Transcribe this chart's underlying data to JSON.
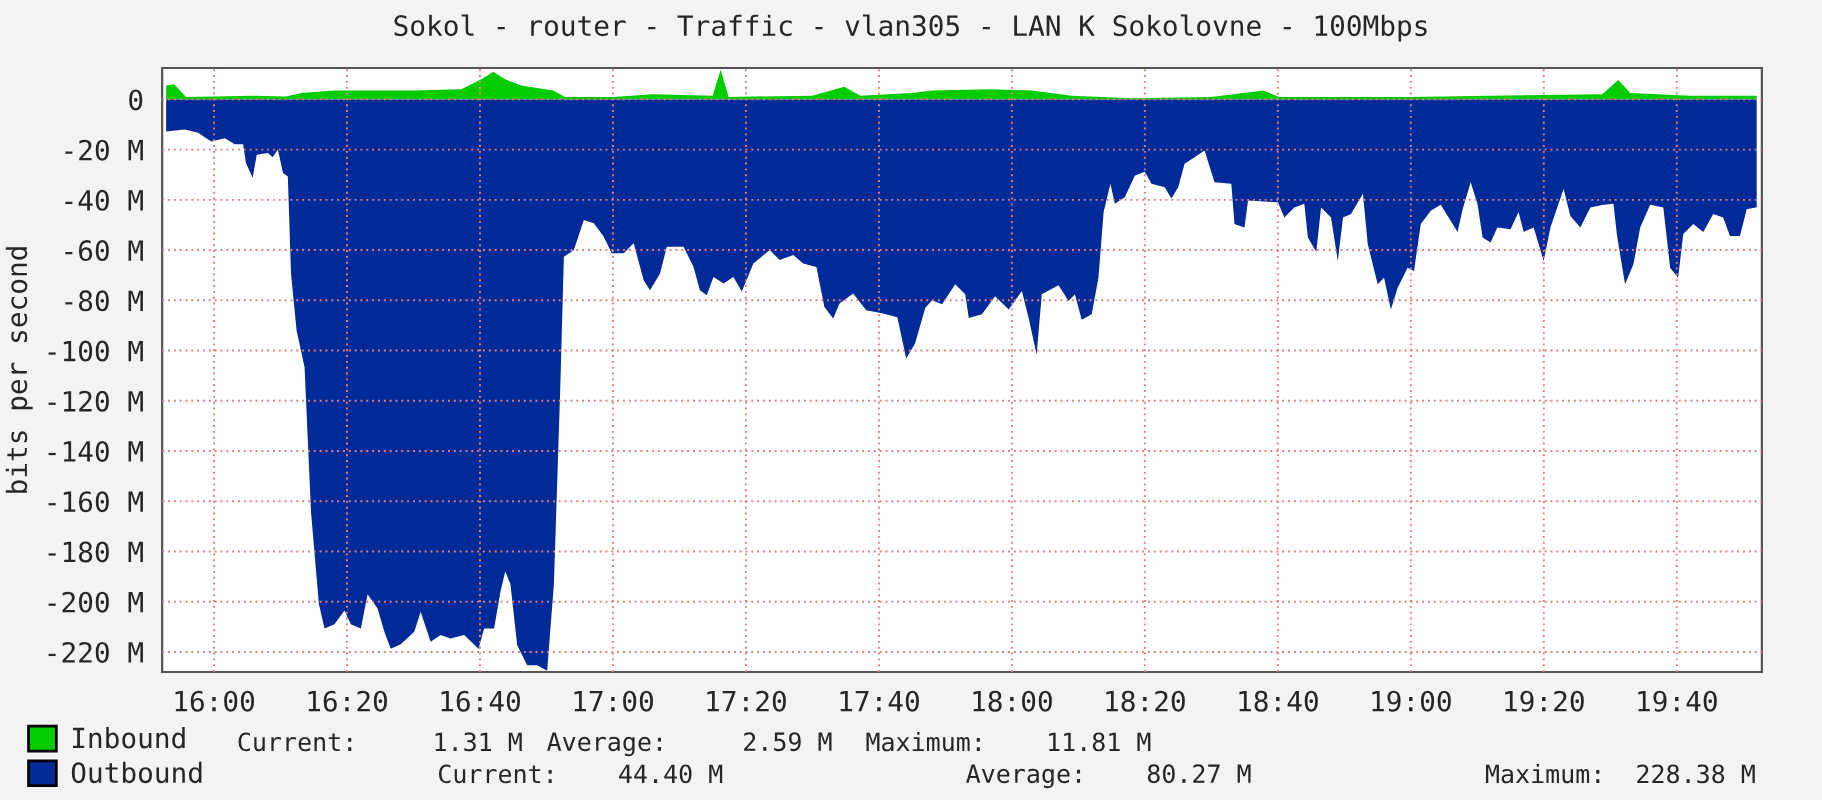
{
  "chart_data": {
    "type": "area",
    "title": "Sokol - router - Traffic - vlan305 - LAN K Sokolovne - 100Mbps",
    "ylabel": "bits per second",
    "xlim": [
      15.87,
      19.88
    ],
    "xticks": [
      {
        "value": 16,
        "label": "16:00"
      },
      {
        "value": 16.3333,
        "label": "16:20"
      },
      {
        "value": 16.6667,
        "label": "16:40"
      },
      {
        "value": 17,
        "label": "17:00"
      },
      {
        "value": 17.3333,
        "label": "17:20"
      },
      {
        "value": 17.6667,
        "label": "17:40"
      },
      {
        "value": 18,
        "label": "18:00"
      },
      {
        "value": 18.3333,
        "label": "18:20"
      },
      {
        "value": 18.6667,
        "label": "18:40"
      },
      {
        "value": 19,
        "label": "19:00"
      },
      {
        "value": 19.3333,
        "label": "19:20"
      },
      {
        "value": 19.6667,
        "label": "19:40"
      }
    ],
    "ylim": [
      -228,
      12.5
    ],
    "yticks": [
      0,
      {
        "value": -20,
        "label": "-20 M"
      },
      {
        "value": -40,
        "label": "-40 M"
      },
      {
        "value": -60,
        "label": "-60 M"
      },
      {
        "value": -80,
        "label": "-80 M"
      },
      {
        "value": -100,
        "label": "-100 M"
      },
      {
        "value": -120,
        "label": "-120 M"
      },
      {
        "value": -140,
        "label": "-140 M"
      },
      {
        "value": -160,
        "label": "-160 M"
      },
      {
        "value": -180,
        "label": "-180 M"
      },
      {
        "value": -200,
        "label": "-200 M"
      },
      {
        "value": -220,
        "label": "-220 M"
      }
    ],
    "grid": true,
    "legend": "bottom",
    "series": [
      {
        "name": "Inbound",
        "color": "#00cc00",
        "x": [
          15.88,
          15.9,
          15.93,
          16.1,
          16.18,
          16.22,
          16.3,
          16.5,
          16.62,
          16.67,
          16.7,
          16.73,
          16.77,
          16.85,
          16.88,
          17.0,
          17.1,
          17.25,
          17.27,
          17.29,
          17.5,
          17.58,
          17.62,
          17.75,
          17.8,
          17.95,
          18.05,
          18.15,
          18.3,
          18.5,
          18.63,
          18.67,
          19.0,
          19.2,
          19.48,
          19.52,
          19.55,
          19.7,
          19.867
        ],
        "values": [
          5.5,
          6,
          1,
          1.5,
          1.2,
          2.5,
          3.5,
          3.5,
          4,
          8,
          11,
          8,
          5.5,
          3.5,
          1,
          1,
          2,
          1.5,
          11.8,
          1,
          1.5,
          5,
          1.5,
          2.5,
          3.5,
          4,
          3.5,
          1.5,
          0.5,
          1,
          3.5,
          1,
          1,
          1.5,
          2,
          7.7,
          2.5,
          1.5,
          1.5
        ]
      },
      {
        "name": "Outbound",
        "color": "#002a97",
        "x": [
          15.88,
          15.927,
          15.96,
          15.993,
          16.027,
          16.052,
          16.073,
          16.08,
          16.097,
          16.107,
          16.135,
          16.147,
          16.16,
          16.173,
          16.185,
          16.193,
          16.207,
          16.227,
          16.243,
          16.263,
          16.277,
          16.302,
          16.327,
          16.343,
          16.368,
          16.385,
          16.41,
          16.427,
          16.443,
          16.468,
          16.502,
          16.518,
          16.543,
          16.568,
          16.593,
          16.627,
          16.663,
          16.677,
          16.702,
          16.718,
          16.73,
          16.743,
          16.76,
          16.785,
          16.81,
          16.835,
          16.852,
          16.868,
          16.877,
          16.902,
          16.927,
          16.952,
          16.977,
          16.997,
          17.027,
          17.052,
          17.077,
          17.093,
          17.118,
          17.135,
          17.177,
          17.202,
          17.218,
          17.235,
          17.252,
          17.277,
          17.302,
          17.323,
          17.352,
          17.393,
          17.418,
          17.452,
          17.477,
          17.51,
          17.53,
          17.552,
          17.568,
          17.602,
          17.635,
          17.677,
          17.713,
          17.735,
          17.757,
          17.783,
          17.8,
          17.825,
          17.858,
          17.883,
          17.892,
          17.925,
          17.958,
          17.992,
          18.025,
          18.042,
          18.062,
          18.075,
          18.117,
          18.142,
          18.158,
          18.175,
          18.2,
          18.217,
          18.23,
          18.247,
          18.258,
          18.283,
          18.308,
          18.333,
          18.35,
          18.383,
          18.4,
          18.417,
          18.433,
          18.458,
          18.483,
          18.508,
          18.55,
          18.558,
          18.583,
          18.592,
          18.667,
          18.683,
          18.708,
          18.733,
          18.742,
          18.763,
          18.775,
          18.8,
          18.817,
          18.83,
          18.85,
          18.88,
          18.892,
          18.917,
          18.933,
          18.95,
          18.967,
          18.992,
          19.008,
          19.025,
          19.05,
          19.075,
          19.1,
          19.117,
          19.13,
          19.15,
          19.167,
          19.18,
          19.2,
          19.217,
          19.25,
          19.27,
          19.283,
          19.308,
          19.333,
          19.35,
          19.383,
          19.4,
          19.425,
          19.45,
          19.483,
          19.508,
          19.517,
          19.537,
          19.558,
          19.575,
          19.6,
          19.633,
          19.65,
          19.67,
          19.683,
          19.708,
          19.733,
          19.758,
          19.783,
          19.8,
          19.825,
          19.842,
          19.867
        ],
        "values": [
          -12.8,
          -12,
          -13.3,
          -16.8,
          -15.5,
          -17.9,
          -17.9,
          -25.3,
          -31.2,
          -22,
          -21.3,
          -23,
          -20,
          -29.3,
          -30.7,
          -69.3,
          -92,
          -106.7,
          -164,
          -201,
          -210.7,
          -209,
          -203.5,
          -209,
          -210.7,
          -197,
          -202.7,
          -212,
          -218.7,
          -217,
          -212,
          -204,
          -216,
          -213.3,
          -214.7,
          -213.3,
          -218.7,
          -210.7,
          -210.7,
          -196,
          -188,
          -193,
          -217.3,
          -225.3,
          -225.3,
          -227.5,
          -193,
          -114.7,
          -62.7,
          -60,
          -48,
          -49.3,
          -54.7,
          -61.3,
          -61.3,
          -57.3,
          -72,
          -76,
          -69.3,
          -58.7,
          -58.7,
          -66.7,
          -76,
          -78,
          -70.7,
          -73.3,
          -70.7,
          -76.5,
          -65.3,
          -60,
          -64,
          -62,
          -65.3,
          -66.7,
          -82.7,
          -87.2,
          -81.3,
          -77.3,
          -84,
          -85.3,
          -86.7,
          -103.2,
          -97.3,
          -83,
          -80,
          -81.6,
          -73.6,
          -77.6,
          -87,
          -85.6,
          -78.4,
          -83.7,
          -76.3,
          -87,
          -101.6,
          -77.6,
          -74,
          -80.3,
          -77.6,
          -87.7,
          -85.6,
          -71,
          -44.8,
          -33.6,
          -41.6,
          -39,
          -30.4,
          -28.8,
          -33.6,
          -35,
          -39.5,
          -35,
          -25.6,
          -23,
          -20.3,
          -33,
          -33.6,
          -49.6,
          -51,
          -40.3,
          -41,
          -47,
          -43,
          -41.6,
          -55,
          -60.8,
          -43,
          -47,
          -64.3,
          -47,
          -45.6,
          -37.6,
          -57.6,
          -73.6,
          -71,
          -83.7,
          -75,
          -67,
          -68.3,
          -49.6,
          -44.3,
          -42,
          -48.3,
          -52.8,
          -43.7,
          -33,
          -41.6,
          -55,
          -57,
          -51,
          -51.7,
          -44.8,
          -52.8,
          -51,
          -64.3,
          -51,
          -35.7,
          -46.4,
          -51,
          -43,
          -42,
          -41.6,
          -54.4,
          -73.6,
          -65.6,
          -51,
          -42,
          -43,
          -67,
          -71,
          -53.6,
          -49.6,
          -52.8,
          -45.6,
          -47,
          -54.4,
          -54.4,
          -43.7,
          -42.9
        ]
      }
    ],
    "annotations": [
      "Current:     1.31 M",
      "Average:     2.59 M",
      "Maximum:    11.81 M",
      "Current:    44.40 M",
      "Average:    80.27 M",
      "Maximum:  228.38 M"
    ]
  }
}
